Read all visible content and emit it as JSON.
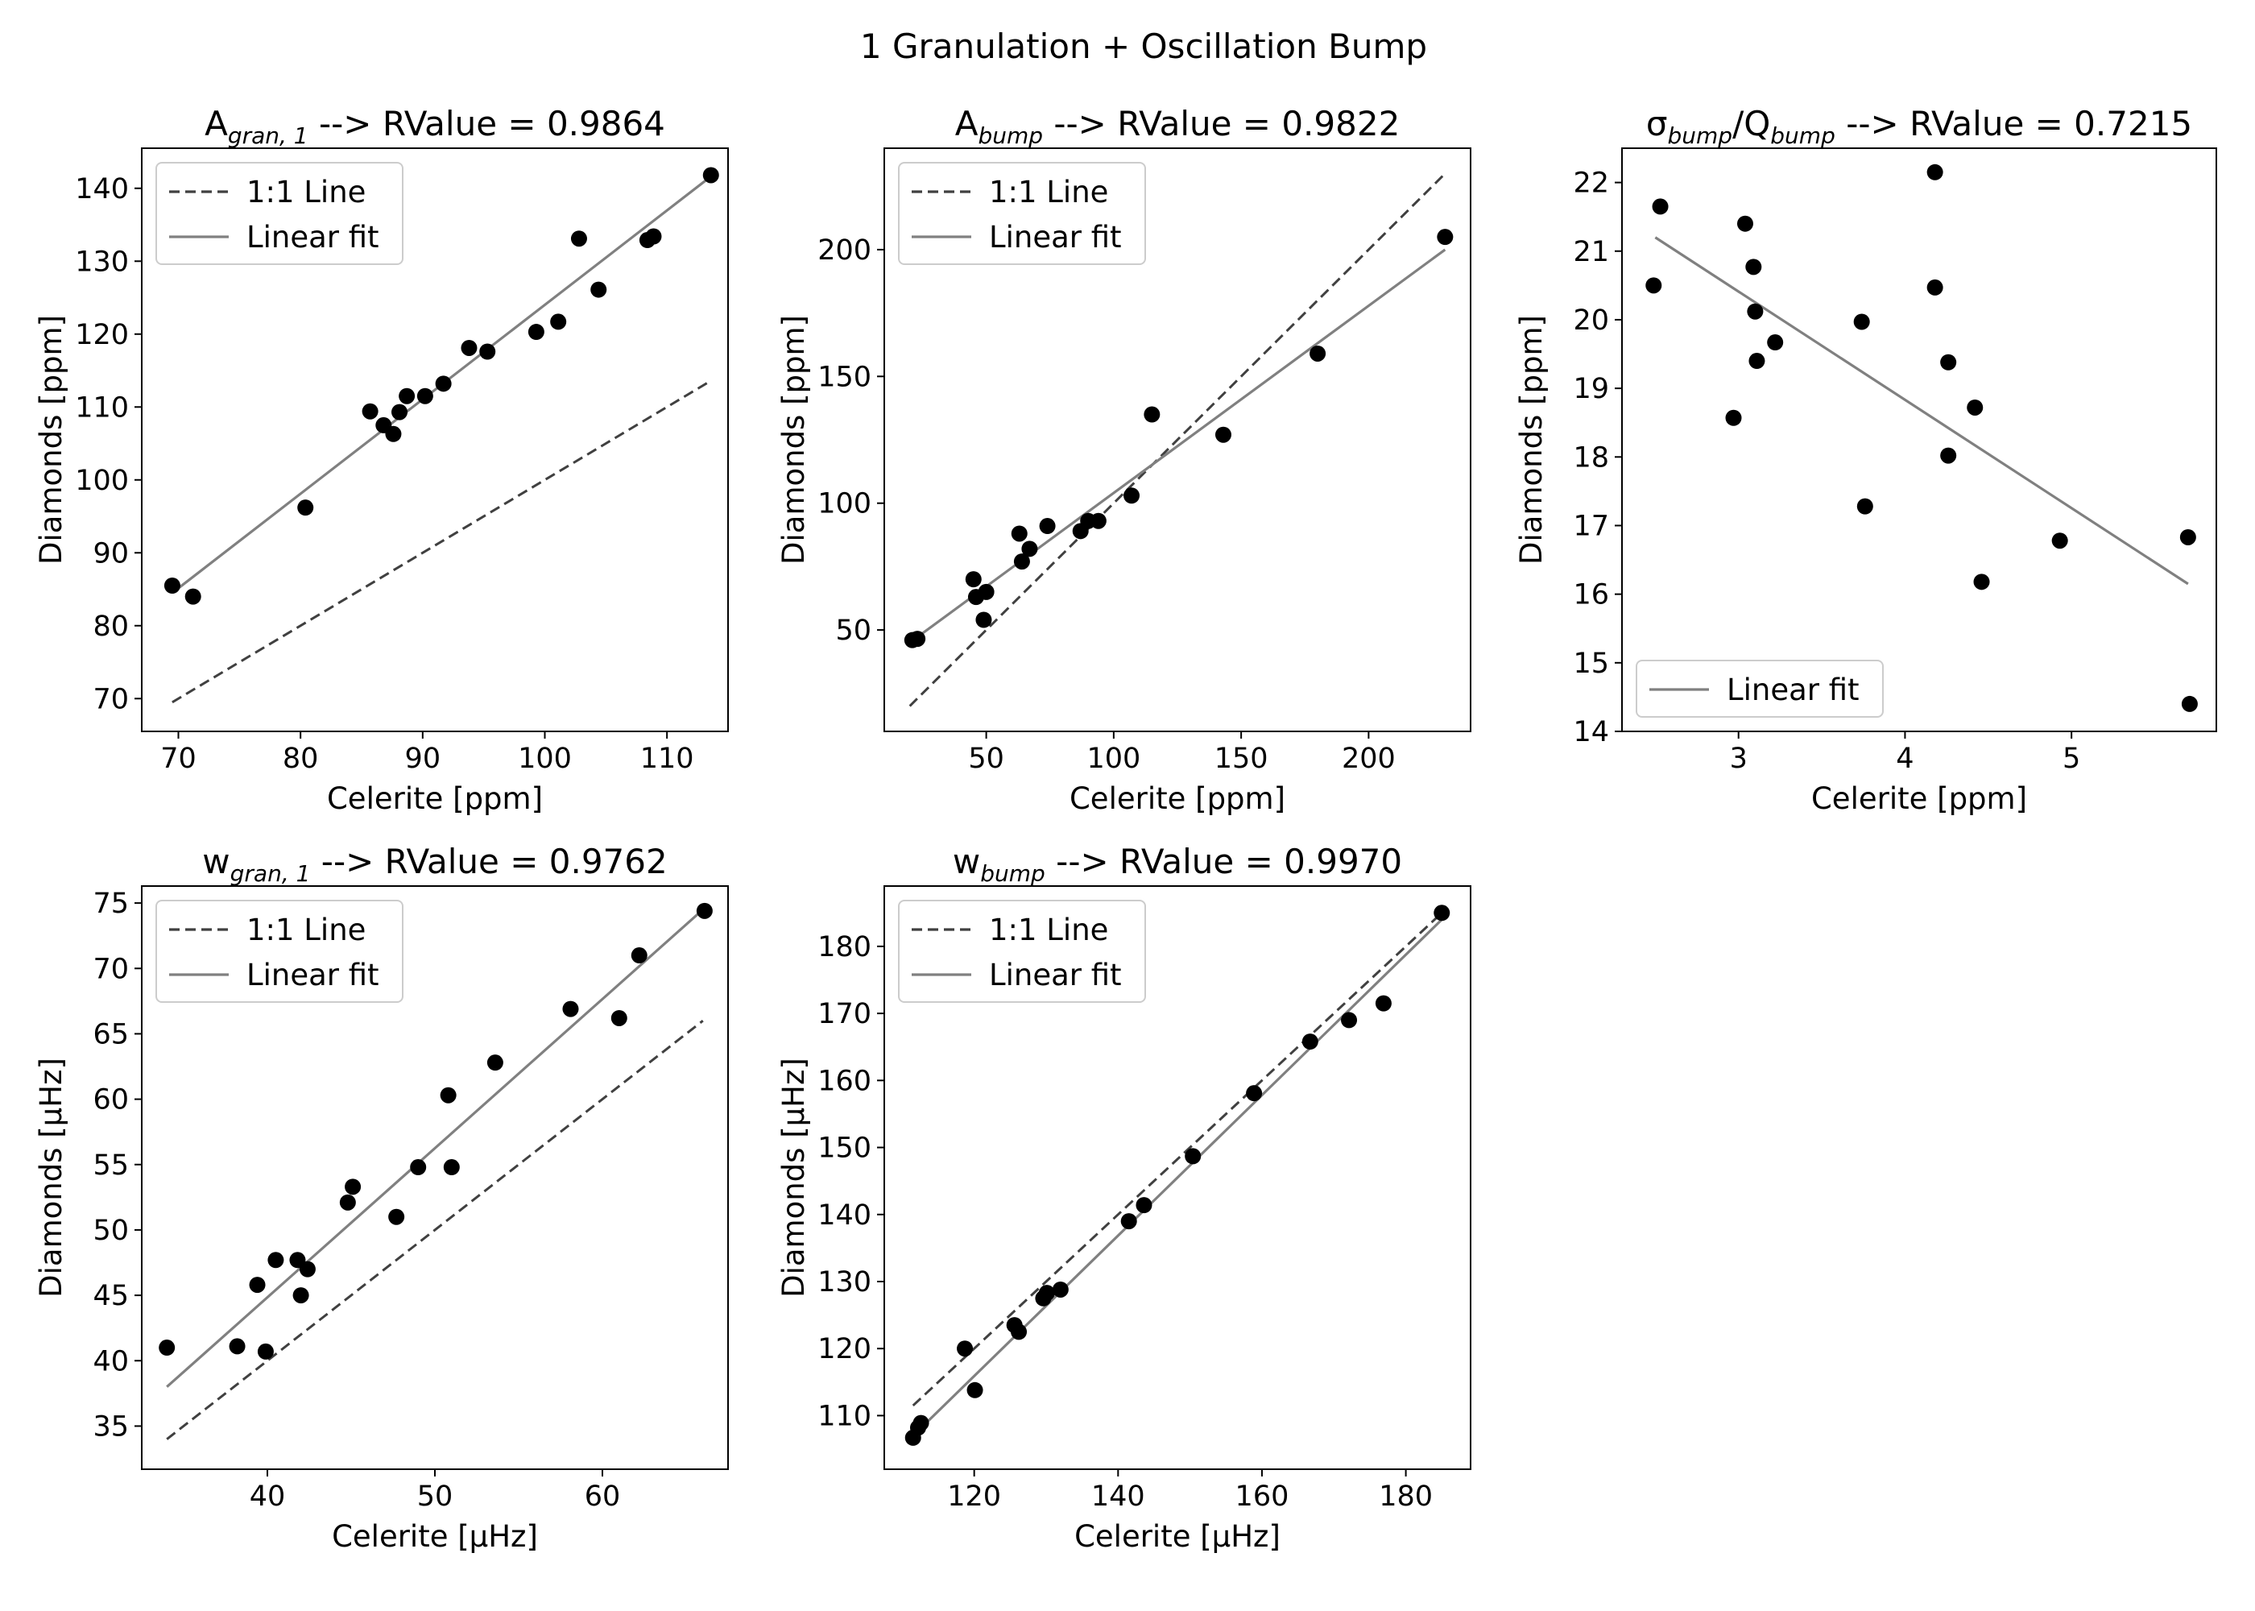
{
  "figure": {
    "suptitle": "1 Granulation + Oscillation Bump"
  },
  "colors": {
    "points": "#000000",
    "one_to_one_line": "#404040",
    "linear_fit": "#808080",
    "axes": "#000000",
    "legend_border": "#cccccc"
  },
  "chart_data": [
    {
      "type": "scatter",
      "title_main": "A",
      "title_sub": "gran, 1",
      "title_rest": "  -->  RValue = 0.9864",
      "xlabel": "Celerite [ppm]",
      "ylabel": "Diamonds [ppm]",
      "xlim": [
        67,
        115
      ],
      "ylim": [
        65.5,
        145.5
      ],
      "xticks": [
        70,
        80,
        90,
        100,
        110
      ],
      "yticks": [
        70,
        80,
        90,
        100,
        110,
        120,
        130,
        140
      ],
      "grid": false,
      "legend_position": "upper left",
      "legend": [
        "1:1 Line",
        "Linear fit"
      ],
      "one_to_one": [
        [
          69.5,
          69.5
        ],
        [
          113.5,
          113.5
        ]
      ],
      "fit": [
        [
          69.5,
          84.5
        ],
        [
          113.5,
          141.5
        ]
      ],
      "points": [
        [
          69.5,
          85.5
        ],
        [
          71.2,
          84
        ],
        [
          80.4,
          96.2
        ],
        [
          85.7,
          109.4
        ],
        [
          86.8,
          107.5
        ],
        [
          87.6,
          106.3
        ],
        [
          88.1,
          109.3
        ],
        [
          88.7,
          111.5
        ],
        [
          90.2,
          111.5
        ],
        [
          91.7,
          113.2
        ],
        [
          93.8,
          118.1
        ],
        [
          95.3,
          117.6
        ],
        [
          99.3,
          120.3
        ],
        [
          101.1,
          121.7
        ],
        [
          102.8,
          133.1
        ],
        [
          104.4,
          126.1
        ],
        [
          108.4,
          132.9
        ],
        [
          108.9,
          133.4
        ],
        [
          113.6,
          141.8
        ]
      ]
    },
    {
      "type": "scatter",
      "title_main": "A",
      "title_sub": "bump",
      "title_rest": "  -->  RValue = 0.9822",
      "xlabel": "Celerite [ppm]",
      "ylabel": "Diamonds [ppm]",
      "xlim": [
        10,
        240
      ],
      "ylim": [
        10,
        240
      ],
      "xticks": [
        50,
        100,
        150,
        200
      ],
      "yticks": [
        50,
        100,
        150,
        200
      ],
      "grid": false,
      "legend_position": "upper left",
      "legend": [
        "1:1 Line",
        "Linear fit"
      ],
      "one_to_one": [
        [
          20,
          20
        ],
        [
          230,
          230
        ]
      ],
      "fit": [
        [
          20,
          45
        ],
        [
          230,
          200
        ]
      ],
      "points": [
        [
          21,
          46
        ],
        [
          23,
          46.5
        ],
        [
          45,
          70
        ],
        [
          46,
          63
        ],
        [
          49,
          54
        ],
        [
          50,
          65
        ],
        [
          63,
          88
        ],
        [
          64,
          77
        ],
        [
          67,
          82
        ],
        [
          74,
          91
        ],
        [
          87,
          89
        ],
        [
          90,
          93
        ],
        [
          94,
          93
        ],
        [
          107,
          103
        ],
        [
          115,
          135
        ],
        [
          143,
          127
        ],
        [
          180,
          159
        ],
        [
          230,
          205
        ]
      ]
    },
    {
      "type": "scatter",
      "title_main": "σ",
      "title_sub": "bump",
      "title_mid": "/Q",
      "title_sub2": "bump",
      "title_rest": "  -->  RValue = 0.7215",
      "xlabel": "Celerite [ppm]",
      "ylabel": "Diamonds [ppm]",
      "xlim": [
        2.3,
        5.87
      ],
      "ylim": [
        14,
        22.5
      ],
      "xticks": [
        3,
        4,
        5
      ],
      "yticks": [
        14,
        15,
        16,
        17,
        18,
        19,
        20,
        21,
        22
      ],
      "grid": false,
      "legend_position": "lower left",
      "legend": [
        "Linear fit"
      ],
      "fit": [
        [
          2.5,
          21.2
        ],
        [
          5.7,
          16.15
        ]
      ],
      "points": [
        [
          2.49,
          20.5
        ],
        [
          2.53,
          21.65
        ],
        [
          2.97,
          18.57
        ],
        [
          3.04,
          21.4
        ],
        [
          3.09,
          20.77
        ],
        [
          3.1,
          20.12
        ],
        [
          3.11,
          19.4
        ],
        [
          3.22,
          19.67
        ],
        [
          3.74,
          19.97
        ],
        [
          3.76,
          17.28
        ],
        [
          4.18,
          22.15
        ],
        [
          4.18,
          20.47
        ],
        [
          4.26,
          19.38
        ],
        [
          4.26,
          18.02
        ],
        [
          4.42,
          18.72
        ],
        [
          4.46,
          16.18
        ],
        [
          4.93,
          16.78
        ],
        [
          5.7,
          16.83
        ],
        [
          5.71,
          14.4
        ]
      ]
    },
    {
      "type": "scatter",
      "title_main": "w",
      "title_sub": "gran, 1",
      "title_rest": "  -->  RValue = 0.9762",
      "xlabel": "Celerite [μHz]",
      "ylabel": "Diamonds [μHz]",
      "xlim": [
        32.5,
        67.5
      ],
      "ylim": [
        31.7,
        76.3
      ],
      "xticks": [
        40,
        50,
        60
      ],
      "yticks": [
        35,
        40,
        45,
        50,
        55,
        60,
        65,
        70,
        75
      ],
      "grid": false,
      "legend_position": "upper left",
      "legend": [
        "1:1 Line",
        "Linear fit"
      ],
      "one_to_one": [
        [
          34,
          34
        ],
        [
          66,
          66
        ]
      ],
      "fit": [
        [
          34,
          38
        ],
        [
          66,
          74.5
        ]
      ],
      "points": [
        [
          34,
          41
        ],
        [
          38.2,
          41.1
        ],
        [
          39.4,
          45.8
        ],
        [
          39.9,
          40.7
        ],
        [
          40.5,
          47.7
        ],
        [
          41.8,
          47.7
        ],
        [
          42,
          45
        ],
        [
          42.4,
          47
        ],
        [
          44.8,
          52.1
        ],
        [
          45.1,
          53.3
        ],
        [
          47.7,
          51
        ],
        [
          49,
          54.8
        ],
        [
          50.8,
          60.3
        ],
        [
          51,
          54.8
        ],
        [
          53.6,
          62.8
        ],
        [
          58.1,
          66.9
        ],
        [
          61,
          66.2
        ],
        [
          62.2,
          71
        ],
        [
          66.1,
          74.4
        ]
      ]
    },
    {
      "type": "scatter",
      "title_main": "w",
      "title_sub": "bump",
      "title_rest": "  -->  RValue = 0.9970",
      "xlabel": "Celerite [μHz]",
      "ylabel": "Diamonds [μHz]",
      "xlim": [
        107.5,
        189
      ],
      "ylim": [
        102,
        189
      ],
      "xticks": [
        120,
        140,
        160,
        180
      ],
      "yticks": [
        110,
        120,
        130,
        140,
        150,
        160,
        170,
        180
      ],
      "grid": false,
      "legend_position": "upper left",
      "legend": [
        "1:1 Line",
        "Linear fit"
      ],
      "one_to_one": [
        [
          111.5,
          111.5
        ],
        [
          185,
          185
        ]
      ],
      "fit": [
        [
          111.5,
          107
        ],
        [
          185,
          184
        ]
      ],
      "points": [
        [
          111.5,
          106.7
        ],
        [
          112.2,
          108.2
        ],
        [
          112.6,
          108.9
        ],
        [
          118.7,
          120
        ],
        [
          120.1,
          113.8
        ],
        [
          125.6,
          123.5
        ],
        [
          126.2,
          122.5
        ],
        [
          129.6,
          127.5
        ],
        [
          130.1,
          128.3
        ],
        [
          132,
          128.8
        ],
        [
          141.5,
          139
        ],
        [
          143.6,
          141.4
        ],
        [
          150.4,
          148.7
        ],
        [
          158.9,
          158.1
        ],
        [
          166.7,
          165.8
        ],
        [
          172.1,
          169
        ],
        [
          176.9,
          171.5
        ],
        [
          185,
          185
        ]
      ]
    }
  ]
}
